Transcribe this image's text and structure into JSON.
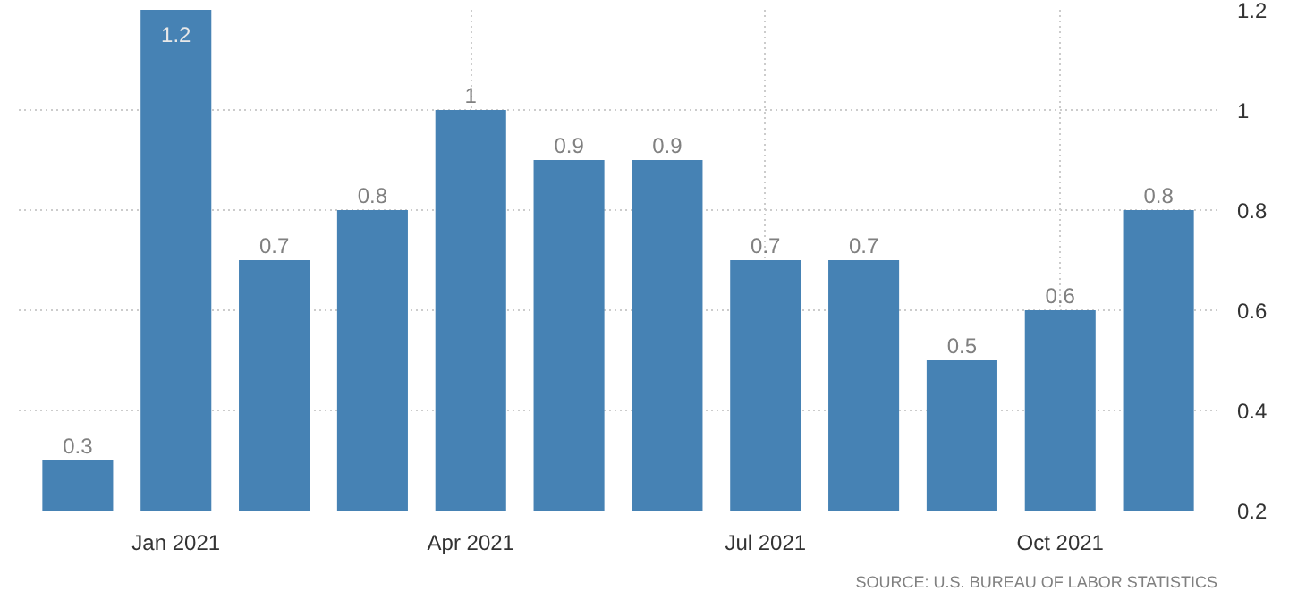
{
  "chart_data": {
    "type": "bar",
    "categories": [
      null,
      "Jan 2021",
      null,
      null,
      "Apr 2021",
      null,
      null,
      "Jul 2021",
      null,
      null,
      "Oct 2021",
      null
    ],
    "values": [
      0.3,
      1.2,
      0.7,
      0.8,
      1,
      0.9,
      0.9,
      0.7,
      0.7,
      0.5,
      0.6,
      0.8
    ],
    "color": "#4682b4",
    "ylim": [
      0.2,
      1.2
    ],
    "yticks": [
      0.2,
      0.4,
      0.6,
      0.8,
      1,
      1.2
    ],
    "grid": true,
    "data_labels": true,
    "annotations": [
      "SOURCE: U.S. BUREAU OF LABOR STATISTICS"
    ]
  }
}
